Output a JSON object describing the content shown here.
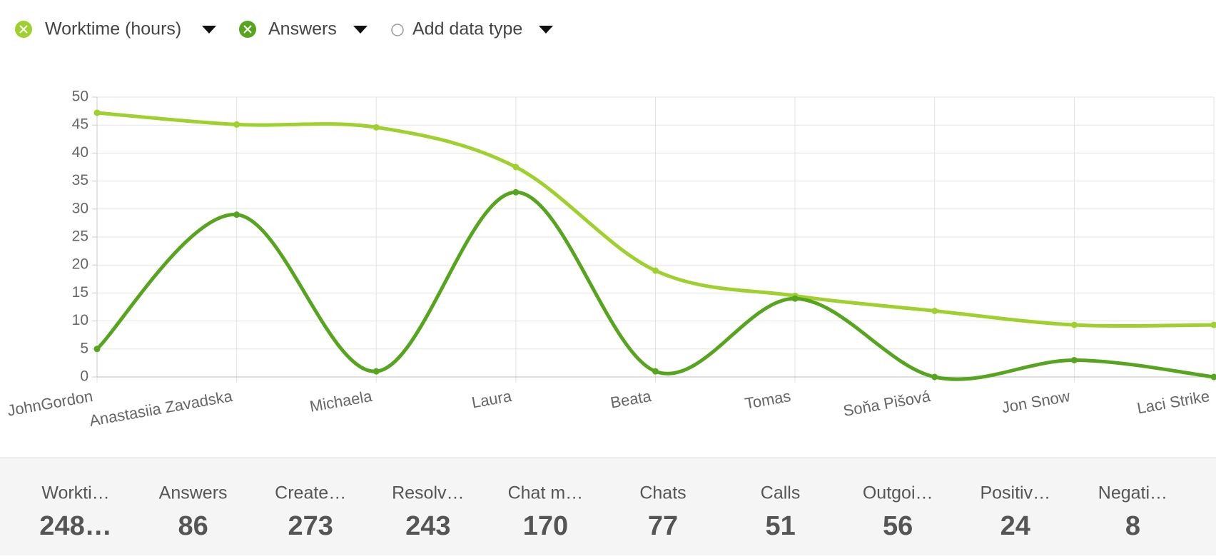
{
  "chart_data": {
    "type": "line",
    "categories": [
      "JohnGordon",
      "Anastasiia Zavadska",
      "Michaela",
      "Laura",
      "Beata",
      "Tomas",
      "Soňa Pišová",
      "Jon Snow",
      "Laci Strike"
    ],
    "series": [
      {
        "name": "Worktime (hours)",
        "color": "#9fd02e",
        "values": [
          47.2,
          45.1,
          44.6,
          37.5,
          19,
          14.5,
          11.8,
          9.3,
          9.3
        ]
      },
      {
        "name": "Answers",
        "color": "#57a51e",
        "values": [
          5,
          29,
          1,
          33,
          1,
          14,
          0,
          3,
          0
        ]
      }
    ],
    "ylim": [
      0,
      50
    ],
    "yticks": [
      0,
      5,
      10,
      15,
      20,
      25,
      30,
      35,
      40,
      45,
      50
    ],
    "grid": true
  },
  "controls": {
    "add_data_type": "Add data type"
  },
  "stats": [
    {
      "label": "Workti…",
      "value": "248…"
    },
    {
      "label": "Answers",
      "value": "86"
    },
    {
      "label": "Create…",
      "value": "273"
    },
    {
      "label": "Resolv…",
      "value": "243"
    },
    {
      "label": "Chat m…",
      "value": "170"
    },
    {
      "label": "Chats",
      "value": "77"
    },
    {
      "label": "Calls",
      "value": "51"
    },
    {
      "label": "Outgoi…",
      "value": "56"
    },
    {
      "label": "Positiv…",
      "value": "24"
    },
    {
      "label": "Negati…",
      "value": "8"
    }
  ]
}
